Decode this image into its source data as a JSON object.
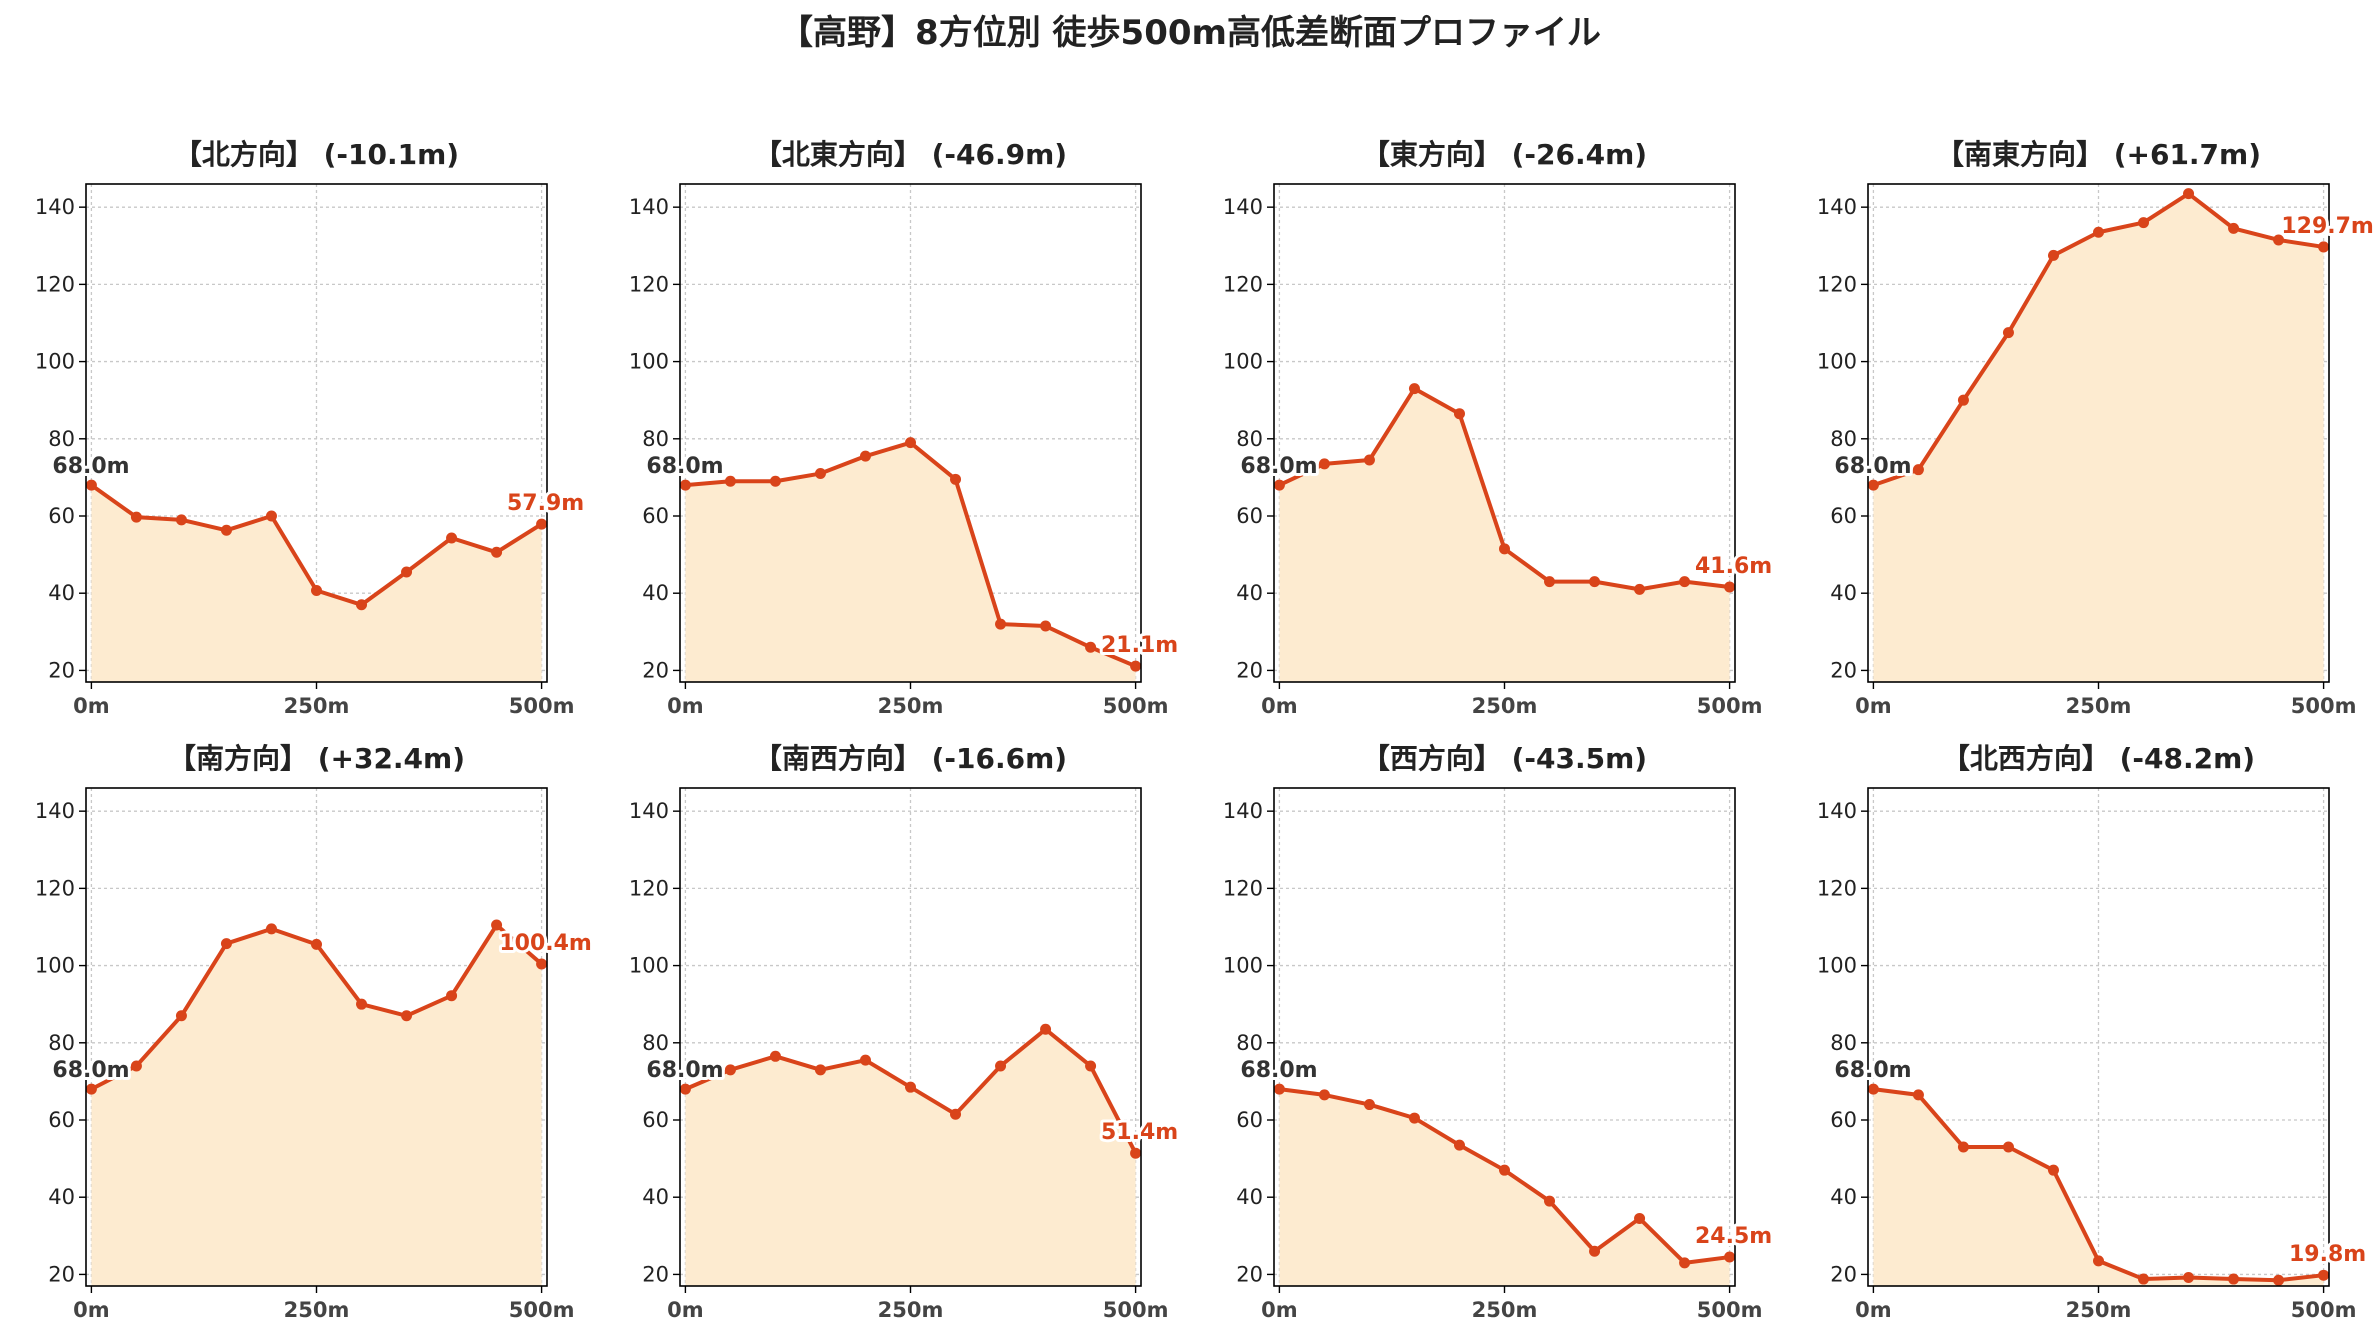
{
  "title": "【高野】8方位別 徒歩500m高低差断面プロファイル",
  "colors": {
    "line": "#d9441a",
    "fill": "#fdebd0",
    "grid": "#c8c8c8",
    "axis": "#000000"
  },
  "chart_data": [
    {
      "type": "area",
      "title": "【北方向】 (-10.1m)",
      "x": [
        0,
        50,
        100,
        150,
        200,
        250,
        300,
        350,
        400,
        450,
        500
      ],
      "y": [
        68.0,
        59.7,
        59.0,
        56.3,
        60.0,
        40.7,
        37.0,
        45.5,
        54.3,
        50.6,
        57.9
      ],
      "start_label": "68.0m",
      "end_label": "57.9m",
      "xticks": [
        0,
        250,
        500
      ],
      "xtick_labels": [
        "0m",
        "250m",
        "500m"
      ],
      "yticks": [
        20,
        40,
        60,
        80,
        100,
        120,
        140
      ],
      "ylim": [
        17,
        146
      ],
      "xlim": [
        -6,
        506
      ],
      "grid": true
    },
    {
      "type": "area",
      "title": "【北東方向】 (-46.9m)",
      "x": [
        0,
        50,
        100,
        150,
        200,
        250,
        300,
        350,
        400,
        450,
        500
      ],
      "y": [
        68.0,
        69.0,
        69.0,
        71.0,
        75.5,
        79.0,
        69.5,
        32.0,
        31.5,
        26.0,
        21.1
      ],
      "start_label": "68.0m",
      "end_label": "21.1m",
      "xticks": [
        0,
        250,
        500
      ],
      "xtick_labels": [
        "0m",
        "250m",
        "500m"
      ],
      "yticks": [
        20,
        40,
        60,
        80,
        100,
        120,
        140
      ],
      "ylim": [
        17,
        146
      ],
      "xlim": [
        -6,
        506
      ],
      "grid": true
    },
    {
      "type": "area",
      "title": "【東方向】 (-26.4m)",
      "x": [
        0,
        50,
        100,
        150,
        200,
        250,
        300,
        350,
        400,
        450,
        500
      ],
      "y": [
        68.0,
        73.5,
        74.5,
        93.0,
        86.5,
        51.5,
        43.0,
        43.0,
        41.0,
        43.0,
        41.6
      ],
      "start_label": "68.0m",
      "end_label": "41.6m",
      "xticks": [
        0,
        250,
        500
      ],
      "xtick_labels": [
        "0m",
        "250m",
        "500m"
      ],
      "yticks": [
        20,
        40,
        60,
        80,
        100,
        120,
        140
      ],
      "ylim": [
        17,
        146
      ],
      "xlim": [
        -6,
        506
      ],
      "grid": true
    },
    {
      "type": "area",
      "title": "【南東方向】 (+61.7m)",
      "x": [
        0,
        50,
        100,
        150,
        200,
        250,
        300,
        350,
        400,
        450,
        500
      ],
      "y": [
        68.0,
        72.0,
        90.0,
        107.5,
        127.5,
        133.5,
        136.0,
        143.5,
        134.5,
        131.5,
        129.7
      ],
      "start_label": "68.0m",
      "end_label": "129.7m",
      "xticks": [
        0,
        250,
        500
      ],
      "xtick_labels": [
        "0m",
        "250m",
        "500m"
      ],
      "yticks": [
        20,
        40,
        60,
        80,
        100,
        120,
        140
      ],
      "ylim": [
        17,
        146
      ],
      "xlim": [
        -6,
        506
      ],
      "grid": true
    },
    {
      "type": "area",
      "title": "【南方向】 (+32.4m)",
      "x": [
        0,
        50,
        100,
        150,
        200,
        250,
        300,
        350,
        400,
        450,
        500
      ],
      "y": [
        68.0,
        74.0,
        87.0,
        105.7,
        109.5,
        105.5,
        90.0,
        87.0,
        92.2,
        110.5,
        100.4
      ],
      "start_label": "68.0m",
      "end_label": "100.4m",
      "xticks": [
        0,
        250,
        500
      ],
      "xtick_labels": [
        "0m",
        "250m",
        "500m"
      ],
      "yticks": [
        20,
        40,
        60,
        80,
        100,
        120,
        140
      ],
      "ylim": [
        17,
        146
      ],
      "xlim": [
        -6,
        506
      ],
      "grid": true
    },
    {
      "type": "area",
      "title": "【南西方向】 (-16.6m)",
      "x": [
        0,
        50,
        100,
        150,
        200,
        250,
        300,
        350,
        400,
        450,
        500
      ],
      "y": [
        68.0,
        73.0,
        76.5,
        73.0,
        75.5,
        68.5,
        61.5,
        74.0,
        83.5,
        74.0,
        51.4
      ],
      "start_label": "68.0m",
      "end_label": "51.4m",
      "xticks": [
        0,
        250,
        500
      ],
      "xtick_labels": [
        "0m",
        "250m",
        "500m"
      ],
      "yticks": [
        20,
        40,
        60,
        80,
        100,
        120,
        140
      ],
      "ylim": [
        17,
        146
      ],
      "xlim": [
        -6,
        506
      ],
      "grid": true
    },
    {
      "type": "area",
      "title": "【西方向】 (-43.5m)",
      "x": [
        0,
        50,
        100,
        150,
        200,
        250,
        300,
        350,
        400,
        450,
        500
      ],
      "y": [
        68.0,
        66.5,
        64.0,
        60.5,
        53.5,
        47.0,
        39.0,
        26.0,
        34.5,
        23.0,
        24.5
      ],
      "start_label": "68.0m",
      "end_label": "24.5m",
      "xticks": [
        0,
        250,
        500
      ],
      "xtick_labels": [
        "0m",
        "250m",
        "500m"
      ],
      "yticks": [
        20,
        40,
        60,
        80,
        100,
        120,
        140
      ],
      "ylim": [
        17,
        146
      ],
      "xlim": [
        -6,
        506
      ],
      "grid": true
    },
    {
      "type": "area",
      "title": "【北西方向】 (-48.2m)",
      "x": [
        0,
        50,
        100,
        150,
        200,
        250,
        300,
        350,
        400,
        450,
        500
      ],
      "y": [
        68.0,
        66.5,
        53.0,
        53.0,
        47.0,
        23.5,
        18.8,
        19.2,
        18.8,
        18.5,
        19.8
      ],
      "start_label": "68.0m",
      "end_label": "19.8m",
      "xticks": [
        0,
        250,
        500
      ],
      "xtick_labels": [
        "0m",
        "250m",
        "500m"
      ],
      "yticks": [
        20,
        40,
        60,
        80,
        100,
        120,
        140
      ],
      "ylim": [
        17,
        146
      ],
      "xlim": [
        -6,
        506
      ],
      "grid": true
    }
  ]
}
